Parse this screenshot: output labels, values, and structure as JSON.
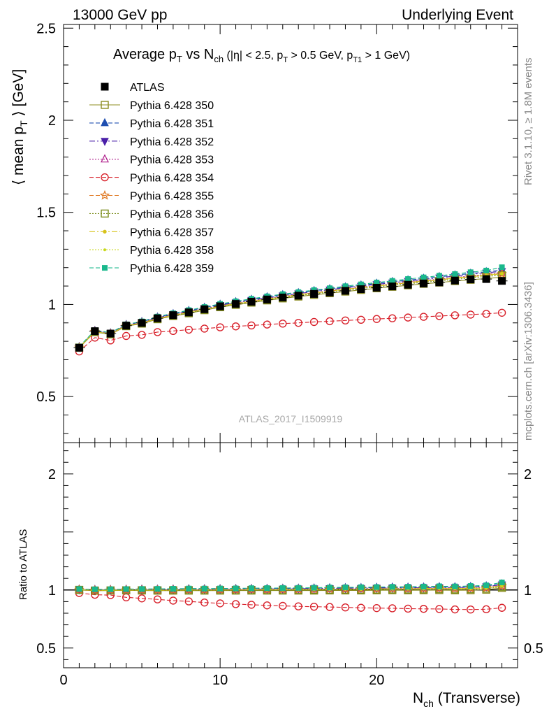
{
  "header": {
    "left": "13000 GeV pp",
    "right": "Underlying Event"
  },
  "side_labels": {
    "rivet": "Rivet 3.1.10, ≥ 1.8M events",
    "mcplots": "mcplots.cern.ch [arXiv:1306.3436]"
  },
  "watermark": "ATLAS_2017_I1509919",
  "chart_data": {
    "type": "scatter",
    "title": "Average p_T vs N_ch (|η| < 2.5, p_T > 0.5 GeV, p_T1 > 1 GeV)",
    "title_parts": {
      "a": "Average p",
      "a_sub": "T",
      "b": " vs N",
      "b_sub": "ch",
      "c": " (|η| < 2.5, p",
      "c_sub": "T",
      "d": " > 0.5 GeV, p",
      "d_sub": "T1",
      "e": " > 1 GeV)"
    },
    "ylabel": "⟨ mean p_T ⟩ [GeV]",
    "ylabel_parts": {
      "a": "⟨ mean p",
      "sub": "T",
      "b": " ⟩ [GeV]"
    },
    "xlabel": "N_ch (Transverse)",
    "xlabel_parts": {
      "a": "N",
      "sub": "ch",
      "b": " (Transverse)"
    },
    "xlim": [
      0,
      29
    ],
    "ylim": [
      0.25,
      2.52
    ],
    "x_ticks": [
      0,
      10,
      20
    ],
    "x_tick_labels": [
      "0",
      "10",
      "20"
    ],
    "y_ticks": [
      0.5,
      1,
      1.5,
      2,
      2.5
    ],
    "y_tick_labels": [
      "0.5",
      "1",
      "1.5",
      "2",
      "2.5"
    ],
    "ratio": {
      "ylabel": "Ratio to ATLAS",
      "ylim": [
        0.33,
        2.27
      ],
      "y_ticks": [
        0.5,
        1,
        2
      ],
      "y_tick_labels": [
        "0.5",
        "1",
        "2"
      ]
    },
    "legend_placement": "top-left",
    "x": [
      1,
      2,
      3,
      4,
      5,
      6,
      7,
      8,
      9,
      10,
      11,
      12,
      13,
      14,
      15,
      16,
      17,
      18,
      19,
      20,
      21,
      22,
      23,
      24,
      25,
      26,
      27,
      28
    ],
    "reference": {
      "name": "ATLAS",
      "values": [
        0.765,
        0.855,
        0.842,
        0.885,
        0.9,
        0.925,
        0.942,
        0.957,
        0.974,
        0.99,
        1.003,
        1.015,
        1.027,
        1.038,
        1.048,
        1.057,
        1.065,
        1.074,
        1.083,
        1.091,
        1.098,
        1.107,
        1.114,
        1.12,
        1.13,
        1.136,
        1.138,
        1.128
      ]
    },
    "series": [
      {
        "name": "Pythia 6.428 350",
        "color": "#8c8c20",
        "marker": "square-open",
        "dash": "",
        "values": [
          0.765,
          0.85,
          0.838,
          0.882,
          0.896,
          0.92,
          0.937,
          0.952,
          0.969,
          0.985,
          0.998,
          1.01,
          1.022,
          1.033,
          1.043,
          1.052,
          1.061,
          1.07,
          1.079,
          1.088,
          1.096,
          1.104,
          1.112,
          1.119,
          1.127,
          1.134,
          1.141,
          1.148
        ]
      },
      {
        "name": "Pythia 6.428 351",
        "color": "#1f4fb0",
        "marker": "triangle-up",
        "dash": "6,3",
        "values": [
          0.77,
          0.858,
          0.845,
          0.89,
          0.906,
          0.931,
          0.949,
          0.966,
          0.983,
          1.0,
          1.014,
          1.027,
          1.04,
          1.052,
          1.063,
          1.074,
          1.084,
          1.094,
          1.104,
          1.114,
          1.123,
          1.132,
          1.141,
          1.15,
          1.159,
          1.168,
          1.177,
          1.186
        ]
      },
      {
        "name": "Pythia 6.428 352",
        "color": "#4a1fa8",
        "marker": "triangle-down",
        "dash": "8,3,2,3",
        "values": [
          0.768,
          0.856,
          0.843,
          0.888,
          0.903,
          0.928,
          0.946,
          0.962,
          0.979,
          0.996,
          1.01,
          1.023,
          1.036,
          1.048,
          1.059,
          1.07,
          1.08,
          1.09,
          1.1,
          1.109,
          1.118,
          1.127,
          1.136,
          1.145,
          1.154,
          1.163,
          1.172,
          1.18
        ]
      },
      {
        "name": "Pythia 6.428 353",
        "color": "#b0208c",
        "marker": "triangle-open",
        "dash": "2,2",
        "values": [
          0.767,
          0.854,
          0.842,
          0.886,
          0.901,
          0.925,
          0.943,
          0.959,
          0.976,
          0.992,
          1.006,
          1.019,
          1.031,
          1.043,
          1.054,
          1.064,
          1.074,
          1.084,
          1.094,
          1.103,
          1.112,
          1.121,
          1.13,
          1.138,
          1.146,
          1.155,
          1.163,
          1.171
        ]
      },
      {
        "name": "Pythia 6.428 354",
        "color": "#d8202a",
        "marker": "circle-open",
        "dash": "6,3",
        "values": [
          0.745,
          0.82,
          0.805,
          0.829,
          0.835,
          0.85,
          0.856,
          0.863,
          0.869,
          0.876,
          0.881,
          0.886,
          0.891,
          0.896,
          0.9,
          0.905,
          0.909,
          0.913,
          0.917,
          0.921,
          0.925,
          0.929,
          0.933,
          0.937,
          0.941,
          0.945,
          0.949,
          0.955
        ]
      },
      {
        "name": "Pythia 6.428 355",
        "color": "#e07820",
        "marker": "star-open",
        "dash": "6,3",
        "values": [
          0.766,
          0.852,
          0.84,
          0.884,
          0.899,
          0.923,
          0.941,
          0.957,
          0.974,
          0.99,
          1.004,
          1.017,
          1.029,
          1.041,
          1.052,
          1.062,
          1.072,
          1.082,
          1.091,
          1.1,
          1.109,
          1.118,
          1.126,
          1.134,
          1.143,
          1.151,
          1.159,
          1.166
        ]
      },
      {
        "name": "Pythia 6.428 356",
        "color": "#7a8c1a",
        "marker": "square-open",
        "dash": "2,2",
        "values": [
          0.766,
          0.851,
          0.839,
          0.883,
          0.898,
          0.922,
          0.94,
          0.955,
          0.972,
          0.988,
          1.001,
          1.014,
          1.026,
          1.037,
          1.048,
          1.058,
          1.067,
          1.077,
          1.086,
          1.095,
          1.103,
          1.112,
          1.12,
          1.128,
          1.136,
          1.144,
          1.152,
          1.159
        ]
      },
      {
        "name": "Pythia 6.428 357",
        "color": "#d8c21a",
        "marker": "dot-small",
        "dash": "8,3,2,3",
        "values": [
          0.767,
          0.853,
          0.841,
          0.885,
          0.9,
          0.924,
          0.942,
          0.958,
          0.975,
          0.991,
          1.005,
          1.018,
          1.03,
          1.042,
          1.053,
          1.063,
          1.073,
          1.083,
          1.092,
          1.101,
          1.11,
          1.119,
          1.128,
          1.136,
          1.144,
          1.152,
          1.16,
          1.168
        ]
      },
      {
        "name": "Pythia 6.428 358",
        "color": "#c8d81a",
        "marker": "dot-tiny",
        "dash": "2,2",
        "values": [
          0.767,
          0.853,
          0.84,
          0.884,
          0.899,
          0.923,
          0.941,
          0.957,
          0.974,
          0.99,
          1.004,
          1.016,
          1.028,
          1.04,
          1.051,
          1.061,
          1.071,
          1.081,
          1.09,
          1.099,
          1.108,
          1.117,
          1.125,
          1.133,
          1.141,
          1.149,
          1.157,
          1.165
        ]
      },
      {
        "name": "Pythia 6.428 359",
        "color": "#1ab88c",
        "marker": "square-filled",
        "dash": "6,3",
        "values": [
          0.771,
          0.86,
          0.847,
          0.892,
          0.908,
          0.934,
          0.952,
          0.969,
          0.986,
          1.003,
          1.017,
          1.031,
          1.044,
          1.056,
          1.067,
          1.078,
          1.088,
          1.099,
          1.109,
          1.119,
          1.128,
          1.138,
          1.147,
          1.156,
          1.165,
          1.175,
          1.184,
          1.202
        ]
      }
    ]
  }
}
